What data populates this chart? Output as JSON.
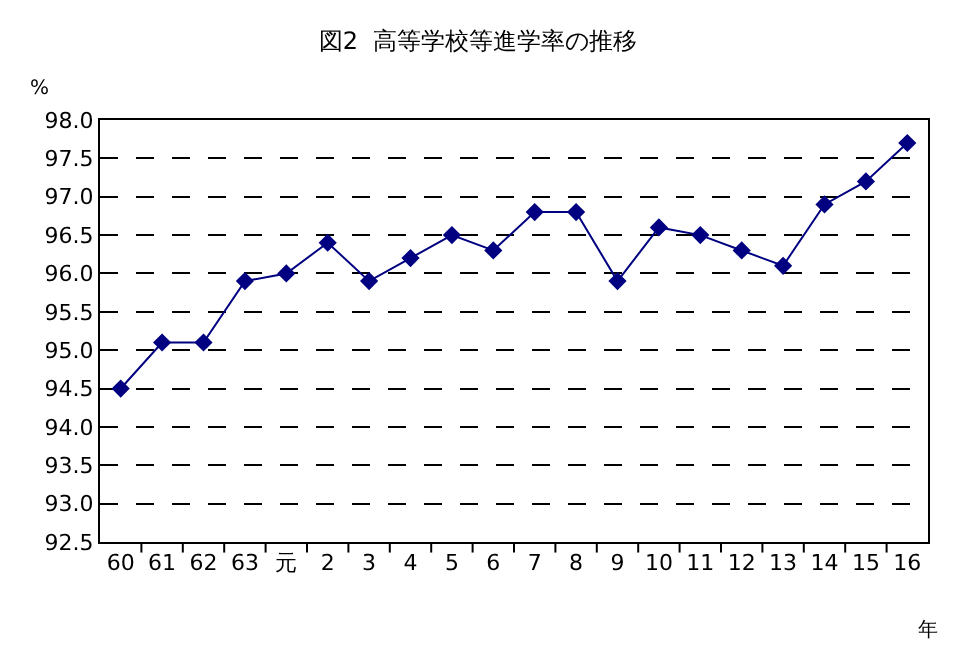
{
  "chart_data": {
    "type": "line",
    "title": "図2  高等学校等進学率の推移",
    "xlabel": "年",
    "ylabel": "%",
    "categories": [
      "60",
      "61",
      "62",
      "63",
      "元",
      "2",
      "3",
      "4",
      "5",
      "6",
      "7",
      "8",
      "9",
      "10",
      "11",
      "12",
      "13",
      "14",
      "15",
      "16"
    ],
    "series": [
      {
        "color": "#000080",
        "values": [
          94.5,
          95.1,
          95.1,
          95.9,
          96.0,
          96.4,
          95.9,
          96.2,
          96.5,
          96.3,
          96.8,
          96.8,
          95.9,
          96.6,
          96.5,
          96.3,
          96.1,
          96.9,
          97.2,
          97.7
        ]
      }
    ],
    "ylim": [
      92.5,
      98.0
    ],
    "yticks": [
      {
        "value": 92.5,
        "label": "92.5"
      },
      {
        "value": 93.0,
        "label": "93.0"
      },
      {
        "value": 93.5,
        "label": "93.5"
      },
      {
        "value": 94.0,
        "label": "94.0"
      },
      {
        "value": 94.5,
        "label": "94.5"
      },
      {
        "value": 95.0,
        "label": "95.0"
      },
      {
        "value": 95.5,
        "label": "95.5"
      },
      {
        "value": 96.0,
        "label": "96.0"
      },
      {
        "value": 96.5,
        "label": "96.5"
      },
      {
        "value": 97.0,
        "label": "97.0"
      },
      {
        "value": 97.5,
        "label": "97.5"
      },
      {
        "value": 98.0,
        "label": "98.0"
      }
    ],
    "grid": "y",
    "marker": "diamond",
    "line_style": "solid",
    "legend": false
  }
}
